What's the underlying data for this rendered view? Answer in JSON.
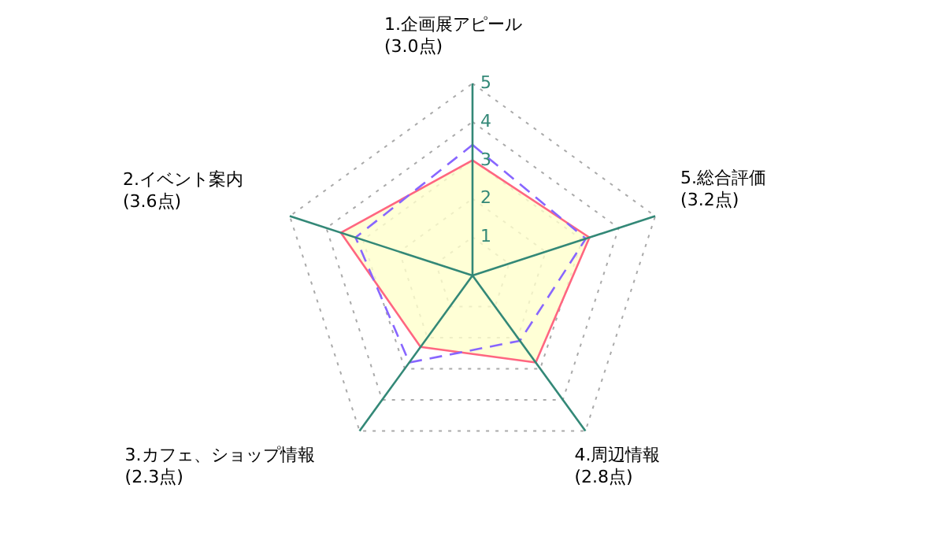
{
  "chart_data": {
    "type": "radar",
    "categories": [
      "1.企画展アピール\n(3.0点)",
      "5.総合評価\n(3.2点)",
      "4.周辺情報\n(2.8点)",
      "3.カフェ、ショップ情報\n(2.3点)",
      "2.イベント案内\n(3.6点)"
    ],
    "ylim": [
      0,
      5
    ],
    "yticks": [
      1,
      2,
      3,
      4,
      5
    ],
    "grid": true,
    "series": [
      {
        "color": "#ff6680",
        "values": [
          3.0,
          3.2,
          2.8,
          2.3,
          3.6
        ],
        "line_style": "solid"
      },
      {
        "color": "#8866ff",
        "values": [
          3.4,
          3.1,
          2.1,
          2.8,
          3.2
        ],
        "line_style": "dashed"
      }
    ]
  }
}
